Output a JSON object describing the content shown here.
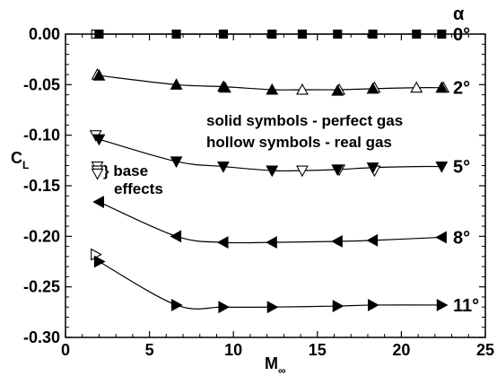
{
  "chart_data": {
    "type": "line",
    "xlabel": "M",
    "xlabel_sub": "∞",
    "ylabel": "C",
    "ylabel_sub": "L",
    "xlim": [
      0,
      25
    ],
    "ylim": [
      -0.3,
      0.0
    ],
    "xticks": [
      0,
      5,
      10,
      15,
      20,
      25
    ],
    "yticks": [
      0.0,
      -0.05,
      -0.1,
      -0.15,
      -0.2,
      -0.25,
      -0.3
    ],
    "ytick_labels": [
      "0.00",
      "-0.05",
      "-0.10",
      "-0.15",
      "-0.20",
      "-0.25",
      "-0.30"
    ],
    "legend_header": "α",
    "annotations": {
      "line1": "solid symbols - perfect gas",
      "line2": "hollow symbols - real gas",
      "base1": "} base",
      "base2": "effects"
    },
    "series": [
      {
        "name": "0°",
        "marker": "square",
        "solid": {
          "x": [
            2,
            6.6,
            9.4,
            12.3,
            14.1,
            16.2,
            18.3,
            20.9,
            22.4
          ],
          "y": [
            0.0,
            0.0,
            0.0,
            0.0,
            0.0,
            0.0,
            0.0,
            0.0,
            0.0
          ]
        },
        "hollow": {
          "x": [
            1.8
          ],
          "y": [
            0.0
          ]
        },
        "curve": {
          "x": [
            2,
            6.6,
            9.4,
            12.3,
            14.1,
            16.2,
            18.3,
            20.9,
            22.4
          ],
          "y": [
            0.0,
            0.0,
            0.0,
            0.0,
            0.0,
            0.0,
            0.0,
            0.0,
            0.0
          ]
        }
      },
      {
        "name": "2°",
        "marker": "triangle-up",
        "solid": {
          "x": [
            2,
            6.6,
            9.4,
            12.3,
            16.2,
            18.3,
            22.4
          ],
          "y": [
            -0.041,
            -0.05,
            -0.052,
            -0.055,
            -0.056,
            -0.054,
            -0.053
          ]
        },
        "hollow": {
          "x": [
            1.9,
            9.5,
            14.1,
            16.3,
            18.4,
            20.9,
            22.5
          ],
          "y": [
            -0.04,
            -0.053,
            -0.055,
            -0.055,
            -0.053,
            -0.053,
            -0.053
          ]
        },
        "curve": {
          "x": [
            2,
            6.6,
            9.4,
            12.3,
            14.1,
            16.2,
            18.3,
            20.9,
            22.4
          ],
          "y": [
            -0.041,
            -0.05,
            -0.052,
            -0.055,
            -0.055,
            -0.055,
            -0.054,
            -0.053,
            -0.053
          ]
        }
      },
      {
        "name": "5°",
        "marker": "triangle-down",
        "solid": {
          "x": [
            2,
            6.6,
            9.4,
            12.3,
            16.2,
            18.3,
            22.4
          ],
          "y": [
            -0.104,
            -0.126,
            -0.131,
            -0.135,
            -0.134,
            -0.132,
            -0.131
          ]
        },
        "hollow": {
          "x": [
            1.8,
            14.1,
            16.3,
            18.4
          ],
          "y": [
            -0.1,
            -0.135,
            -0.134,
            -0.135
          ]
        },
        "curve": {
          "x": [
            2,
            6.6,
            9.4,
            12.3,
            14.1,
            16.2,
            18.3,
            20.9,
            22.4
          ],
          "y": [
            -0.104,
            -0.126,
            -0.131,
            -0.135,
            -0.135,
            -0.134,
            -0.132,
            -0.131,
            -0.131
          ]
        },
        "base_effect_markers": {
          "x": [
            1.9,
            1.9,
            1.9
          ],
          "y": [
            -0.131,
            -0.135,
            -0.138
          ]
        }
      },
      {
        "name": "8°",
        "marker": "triangle-left",
        "solid": {
          "x": [
            2,
            6.6,
            9.4,
            12.3,
            16.2,
            18.3,
            22.4
          ],
          "y": [
            -0.166,
            -0.2,
            -0.206,
            -0.206,
            -0.205,
            -0.204,
            -0.201
          ]
        },
        "hollow": {
          "x": [],
          "y": []
        },
        "curve": {
          "x": [
            2,
            6.6,
            9.4,
            12.3,
            16.2,
            18.3,
            22.4
          ],
          "y": [
            -0.166,
            -0.2,
            -0.206,
            -0.206,
            -0.205,
            -0.204,
            -0.201
          ]
        }
      },
      {
        "name": "11°",
        "marker": "triangle-right",
        "solid": {
          "x": [
            2,
            6.6,
            9.4,
            12.3,
            16.2,
            18.3,
            22.4
          ],
          "y": [
            -0.225,
            -0.268,
            -0.27,
            -0.27,
            -0.269,
            -0.268,
            -0.268
          ]
        },
        "hollow": {
          "x": [
            1.8
          ],
          "y": [
            -0.218
          ]
        },
        "curve": {
          "x": [
            2,
            6.6,
            9.4,
            12.3,
            16.2,
            18.3,
            22.4
          ],
          "y": [
            -0.225,
            -0.268,
            -0.27,
            -0.27,
            -0.269,
            -0.268,
            -0.268
          ]
        }
      }
    ]
  }
}
